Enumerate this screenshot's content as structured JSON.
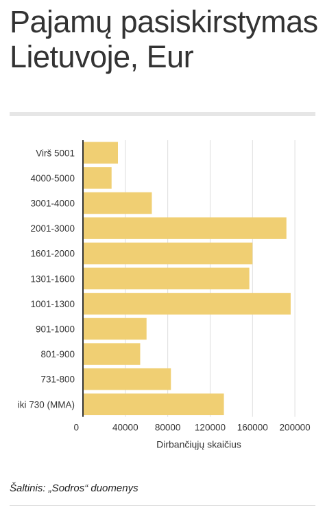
{
  "chart_data": {
    "type": "bar",
    "orientation": "horizontal",
    "title": "Pajamų pasiskirstymas Lietuvoje, Eur",
    "xlabel": "Dirbančiųjų skaičius",
    "ylabel": "",
    "xlim": [
      0,
      220000
    ],
    "xticks": [
      0,
      40000,
      80000,
      120000,
      160000,
      200000
    ],
    "grid": true,
    "categories": [
      "Virš 5001",
      "4000-5000",
      "3001-4000",
      "2001-3000",
      "1601-2000",
      "1301-1600",
      "1001-1300",
      "901-1000",
      "801-900",
      "731-800",
      "iki 730 (MMA)"
    ],
    "values": [
      33000,
      27000,
      65000,
      192000,
      160000,
      157000,
      196000,
      60000,
      54000,
      83000,
      133000
    ],
    "bar_color": "#f0cf73"
  },
  "source": "Šaltinis: „Sodros“ duomenys"
}
